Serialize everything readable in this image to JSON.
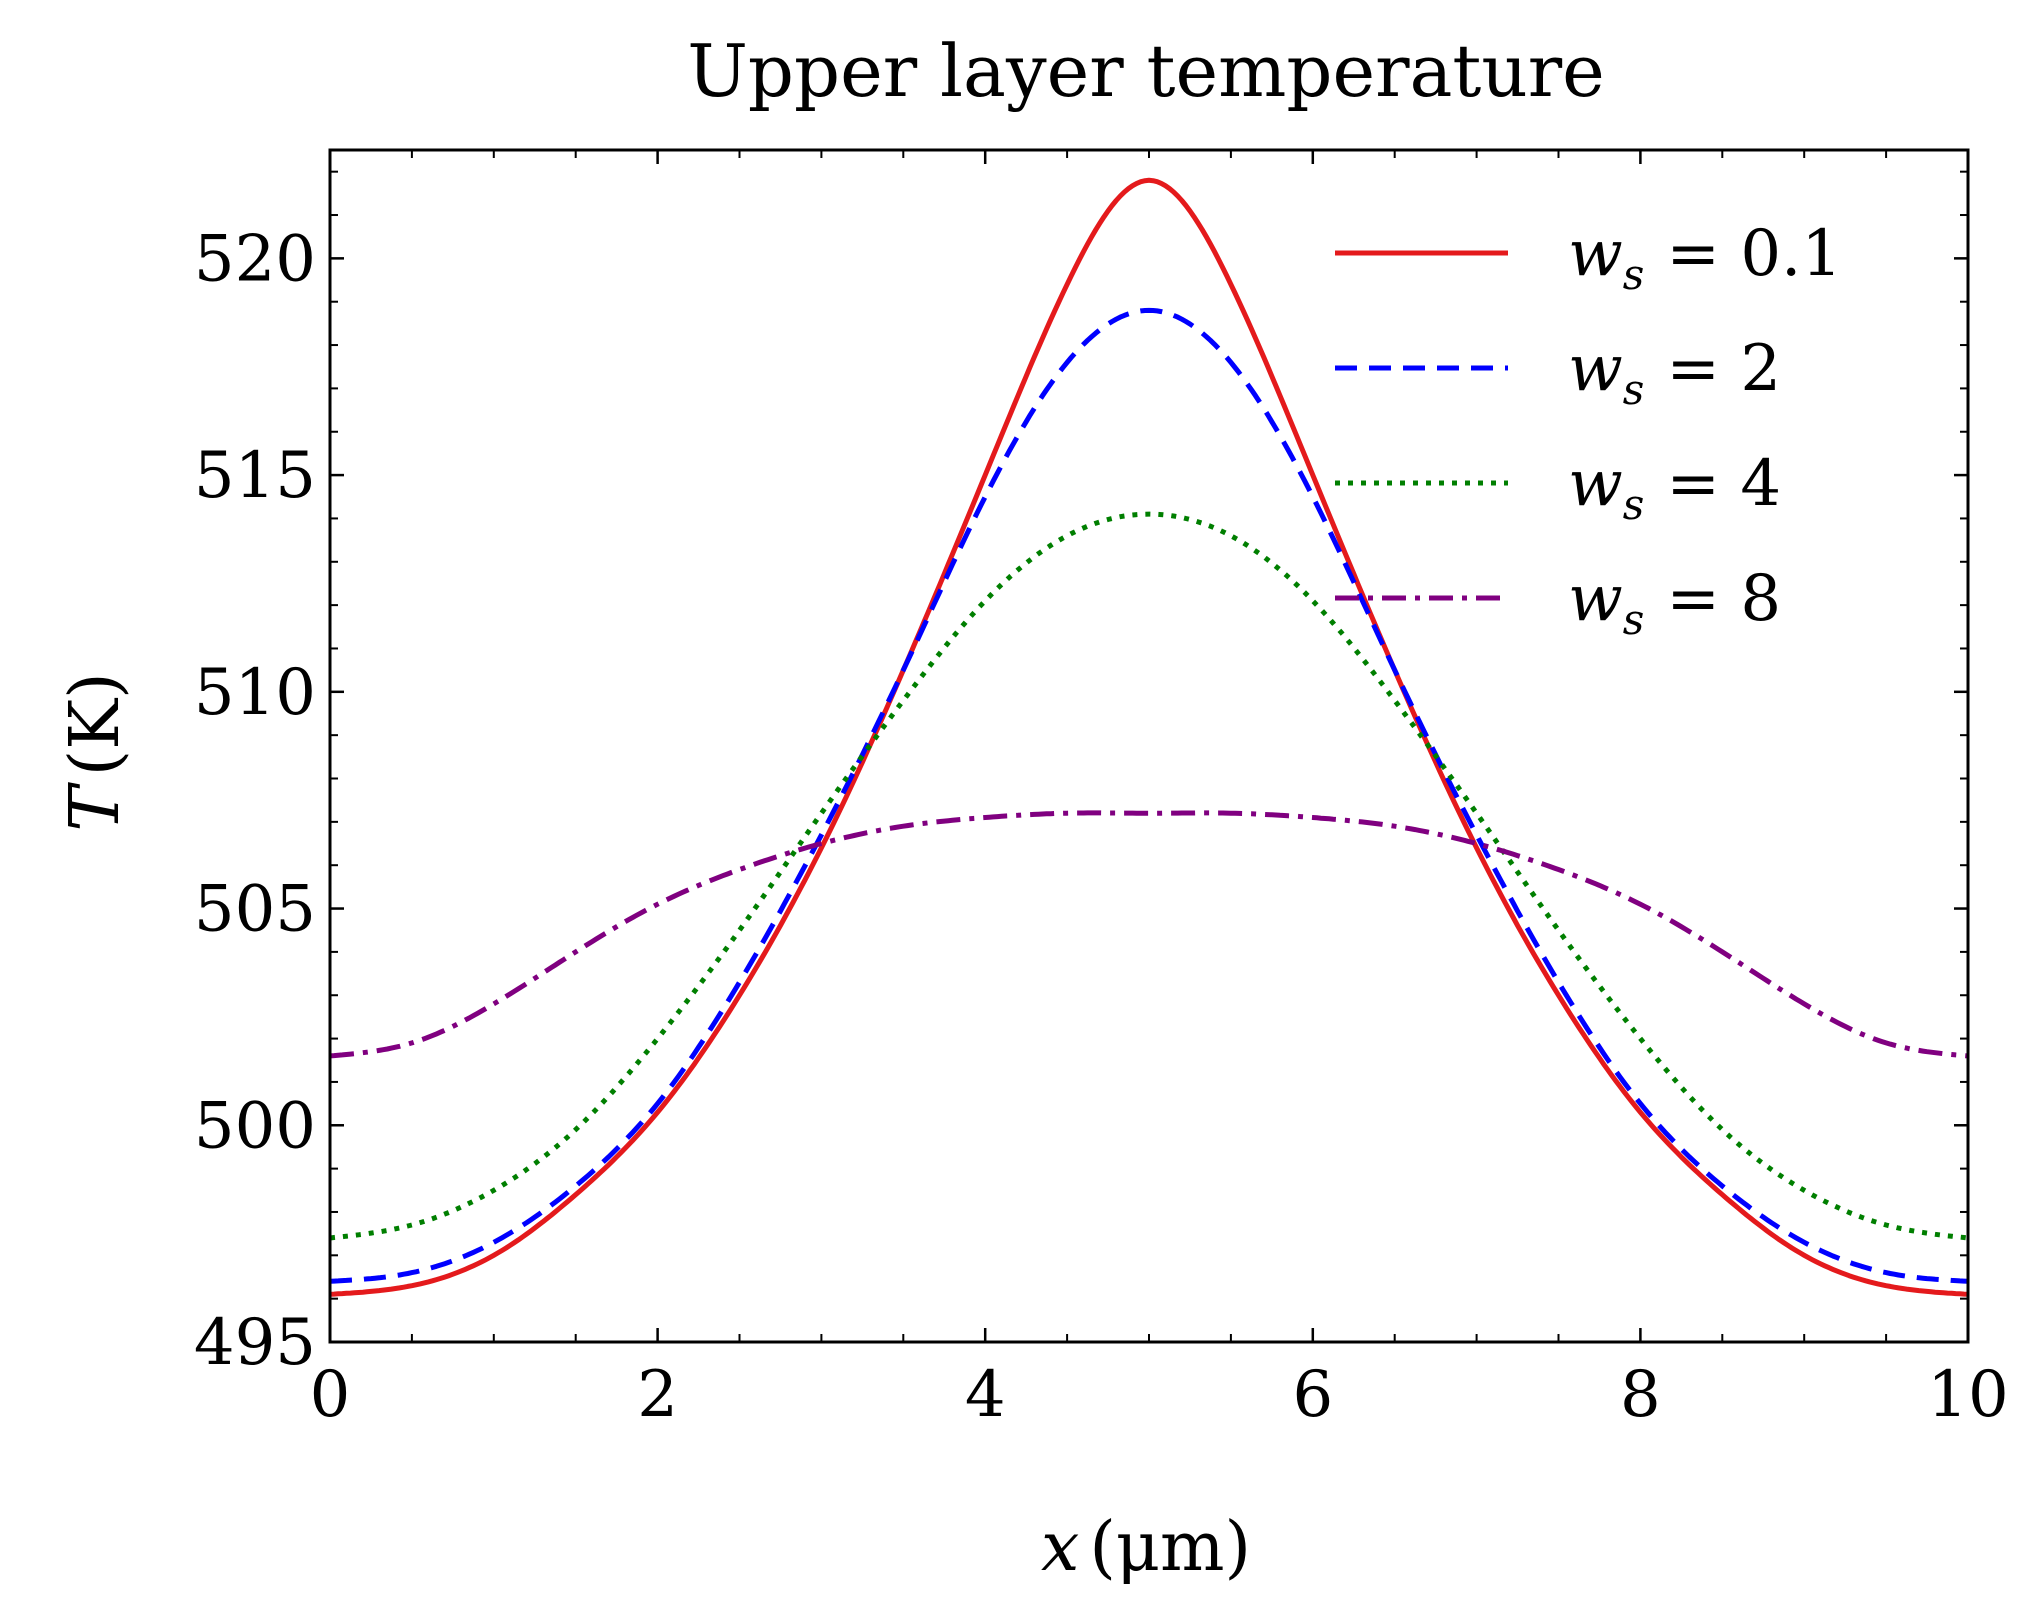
{
  "chart_data": {
    "type": "line",
    "title": "Upper layer temperature",
    "xlabel": {
      "var": "x",
      "unit": "(μm)"
    },
    "ylabel": {
      "var": "T",
      "unit": "(K)"
    },
    "xlim": [
      0,
      10
    ],
    "ylim": [
      495,
      522.5
    ],
    "xticks": [
      0,
      2,
      4,
      6,
      8,
      10
    ],
    "yticks": [
      495,
      500,
      505,
      510,
      515,
      520
    ],
    "x_minor_step": 0.5,
    "y_minor_step": 1,
    "grid": false,
    "legend_position": "top-right",
    "x": [
      0,
      0.5,
      1,
      1.5,
      2,
      2.5,
      3,
      3.5,
      4,
      4.5,
      5,
      5.5,
      6,
      6.5,
      7,
      7.5,
      8,
      8.5,
      9,
      9.5,
      10
    ],
    "series": [
      {
        "name": "w_s = 0.1",
        "label_var": "w",
        "label_sub": "s",
        "label_value": "= 0.1",
        "color": "#e41a1c",
        "dash": "",
        "values": [
          496.1,
          496.3,
          497.0,
          498.4,
          500.3,
          503.0,
          506.4,
          510.5,
          515.0,
          519.4,
          521.8,
          519.4,
          515.0,
          510.5,
          506.4,
          503.0,
          500.3,
          498.4,
          497.0,
          496.3,
          496.1
        ]
      },
      {
        "name": "w_s = 2",
        "label_var": "w",
        "label_sub": "s",
        "label_value": "= 2",
        "color": "#0000ff",
        "dash": "22 12",
        "values": [
          496.4,
          496.6,
          497.3,
          498.6,
          500.5,
          503.3,
          506.7,
          510.5,
          514.5,
          517.6,
          518.8,
          517.6,
          514.5,
          510.5,
          506.7,
          503.3,
          500.5,
          498.6,
          497.3,
          496.6,
          496.4
        ]
      },
      {
        "name": "w_s = 4",
        "label_var": "w",
        "label_sub": "s",
        "label_value": "= 4",
        "color": "#007f00",
        "dash": "5 8",
        "values": [
          497.4,
          497.7,
          498.5,
          499.9,
          502.0,
          504.5,
          507.2,
          509.8,
          512.1,
          513.6,
          514.1,
          513.6,
          512.1,
          509.8,
          507.2,
          504.5,
          502.0,
          499.9,
          498.5,
          497.7,
          497.4
        ]
      },
      {
        "name": "w_s = 8",
        "label_var": "w",
        "label_sub": "s",
        "label_value": "= 8",
        "color": "#800080",
        "dash": "24 9 5 9",
        "values": [
          501.6,
          501.9,
          502.8,
          504.0,
          505.1,
          505.9,
          506.5,
          506.9,
          507.1,
          507.2,
          507.2,
          507.2,
          507.1,
          506.9,
          506.5,
          505.9,
          505.1,
          504.0,
          502.8,
          501.9,
          501.6
        ]
      }
    ]
  }
}
